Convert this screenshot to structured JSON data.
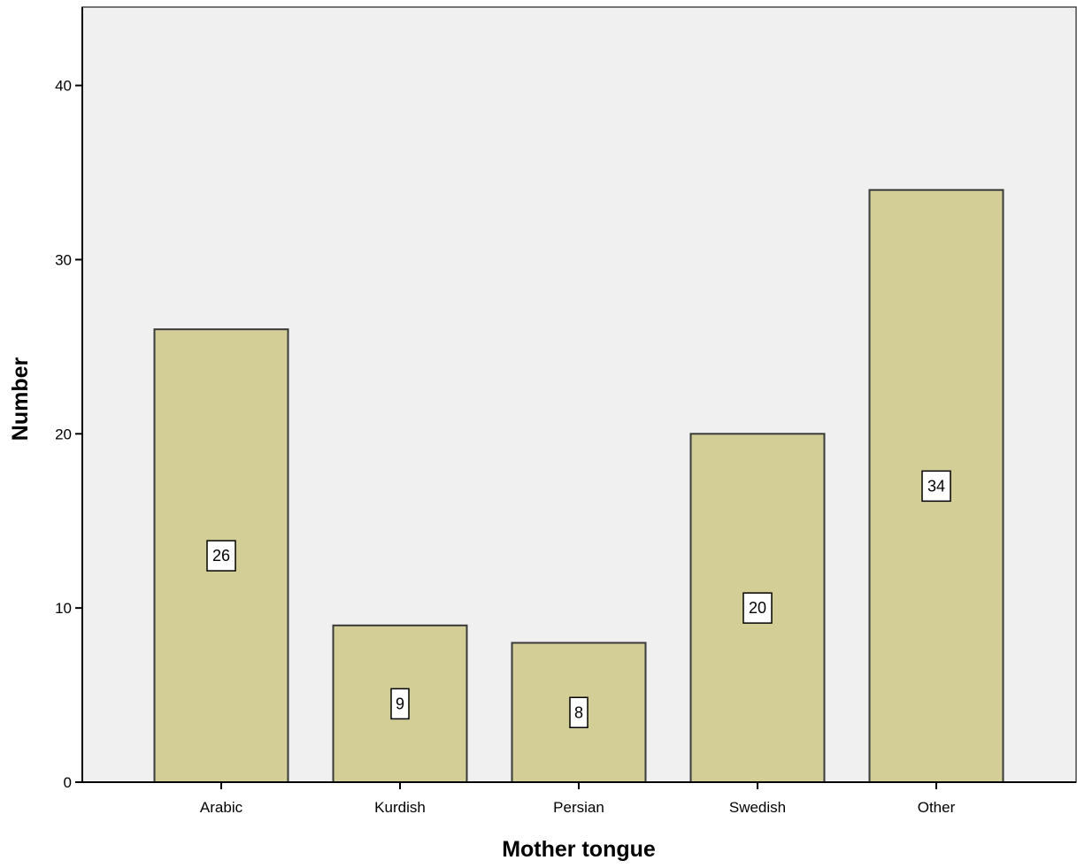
{
  "chart_data": {
    "type": "bar",
    "title": "",
    "xlabel": "Mother tongue",
    "ylabel": "Number",
    "categories": [
      "Arabic",
      "Kurdish",
      "Persian",
      "Swedish",
      "Other"
    ],
    "values": [
      26,
      9,
      8,
      20,
      34
    ],
    "data_labels": [
      "26",
      "9",
      "8",
      "20",
      "34"
    ],
    "ylim": [
      0,
      44.5
    ],
    "yticks": [
      0,
      10,
      20,
      30,
      40
    ],
    "ytick_labels": [
      "0",
      "10",
      "20",
      "30",
      "40"
    ],
    "grid": false,
    "legend": "none",
    "colors": {
      "bar_fill": "#d3cd96",
      "bar_stroke": "#3a3a3a",
      "plot_background": "#f0f0f0",
      "axis": "#000000",
      "label_box_fill": "#ffffff",
      "label_box_stroke": "#000000"
    }
  }
}
